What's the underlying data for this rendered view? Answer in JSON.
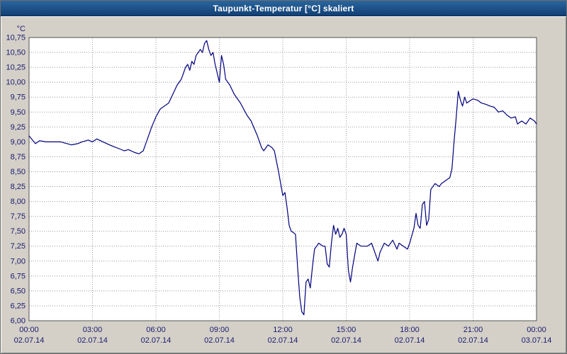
{
  "window": {
    "title": "Taupunkt-Temperatur [°C] skaliert"
  },
  "colors": {
    "title_bar_bg": "#17538f",
    "panel_bg": "#d4d0c8",
    "plot_bg": "#ffffff",
    "grid": "#999999",
    "plot_border": "#555555",
    "axis_text": "#1a1a6e",
    "line": "#00007f"
  },
  "chart_data": {
    "type": "line",
    "title": "Taupunkt-Temperatur [°C] skaliert",
    "xlabel": "",
    "ylabel": "°C",
    "ylim": [
      6.0,
      10.75
    ],
    "y_tick_step": 0.25,
    "y_tick_labels": [
      "10,75",
      "10,50",
      "10,25",
      "10,00",
      "9,75",
      "9,50",
      "9,25",
      "9,00",
      "8,75",
      "8,50",
      "8,25",
      "8,00",
      "7,75",
      "7,50",
      "7,25",
      "7,00",
      "6,75",
      "6,50",
      "6,25",
      "6,00"
    ],
    "xlim_hours": [
      0,
      24
    ],
    "x_ticks": [
      {
        "time": "00:00",
        "date": "02.07.14"
      },
      {
        "time": "03:00",
        "date": "02.07.14"
      },
      {
        "time": "06:00",
        "date": "02.07.14"
      },
      {
        "time": "09:00",
        "date": "02.07.14"
      },
      {
        "time": "12:00",
        "date": "02.07.14"
      },
      {
        "time": "15:00",
        "date": "02.07.14"
      },
      {
        "time": "18:00",
        "date": "02.07.14"
      },
      {
        "time": "21:00",
        "date": "02.07.14"
      },
      {
        "time": "00:00",
        "date": "03.07.14"
      }
    ],
    "grid": true,
    "legend": "none",
    "series_name": "Taupunkt-Temperatur",
    "x": [
      0,
      0.3,
      0.5,
      0.8,
      1,
      1.5,
      1.8,
      2,
      2.3,
      2.5,
      2.8,
      3,
      3.2,
      3.5,
      3.8,
      4,
      4.3,
      4.5,
      4.7,
      5,
      5.2,
      5.4,
      5.5,
      5.8,
      6,
      6.2,
      6.4,
      6.6,
      6.8,
      7,
      7.2,
      7.3,
      7.4,
      7.5,
      7.6,
      7.7,
      7.8,
      7.9,
      8,
      8.1,
      8.2,
      8.3,
      8.4,
      8.5,
      8.6,
      8.7,
      8.8,
      8.9,
      9,
      9.1,
      9.2,
      9.3,
      9.4,
      9.5,
      9.7,
      10,
      10.3,
      10.5,
      10.8,
      11,
      11.1,
      11.3,
      11.5,
      11.6,
      11.8,
      12,
      12.1,
      12.2,
      12.3,
      12.4,
      12.5,
      12.6,
      12.7,
      12.8,
      12.9,
      13,
      13.1,
      13.2,
      13.3,
      13.4,
      13.5,
      13.7,
      13.9,
      14,
      14.1,
      14.2,
      14.3,
      14.4,
      14.5,
      14.6,
      14.7,
      14.8,
      14.9,
      15,
      15.1,
      15.2,
      15.3,
      15.4,
      15.5,
      15.7,
      16,
      16.2,
      16.4,
      16.5,
      16.6,
      16.8,
      17,
      17.2,
      17.4,
      17.5,
      17.7,
      17.9,
      18,
      18.2,
      18.3,
      18.4,
      18.5,
      18.6,
      18.7,
      18.8,
      18.9,
      19,
      19.2,
      19.4,
      19.5,
      19.7,
      19.9,
      20,
      20.1,
      20.2,
      20.3,
      20.4,
      20.5,
      20.6,
      20.7,
      20.9,
      21,
      21.2,
      21.4,
      21.6,
      21.8,
      22,
      22.2,
      22.4,
      22.6,
      22.8,
      23,
      23.1,
      23.3,
      23.5,
      23.7,
      23.9,
      24
    ],
    "y": [
      9.1,
      8.97,
      9.02,
      9.0,
      9.0,
      9.0,
      8.97,
      8.95,
      8.97,
      9.0,
      9.03,
      9.0,
      9.05,
      9.0,
      8.95,
      8.92,
      8.88,
      8.85,
      8.87,
      8.82,
      8.8,
      8.85,
      8.95,
      9.25,
      9.42,
      9.55,
      9.6,
      9.65,
      9.8,
      9.95,
      10.05,
      10.15,
      10.25,
      10.3,
      10.2,
      10.35,
      10.3,
      10.45,
      10.5,
      10.55,
      10.5,
      10.65,
      10.7,
      10.55,
      10.45,
      10.5,
      10.3,
      10.15,
      10.0,
      10.45,
      10.3,
      10.05,
      10.0,
      9.95,
      9.8,
      9.65,
      9.45,
      9.35,
      9.1,
      8.9,
      8.85,
      8.95,
      8.9,
      8.85,
      8.5,
      8.1,
      8.15,
      7.9,
      7.6,
      7.5,
      7.48,
      7.45,
      6.9,
      6.4,
      6.15,
      6.1,
      6.65,
      6.7,
      6.55,
      6.9,
      7.2,
      7.3,
      7.25,
      7.25,
      6.95,
      6.9,
      7.3,
      7.6,
      7.45,
      7.55,
      7.4,
      7.45,
      7.55,
      7.45,
      6.85,
      6.65,
      6.9,
      7.1,
      7.3,
      7.25,
      7.25,
      7.3,
      7.1,
      7.0,
      7.15,
      7.3,
      7.25,
      7.35,
      7.2,
      7.3,
      7.25,
      7.2,
      7.3,
      7.55,
      7.8,
      7.6,
      7.55,
      7.95,
      8.0,
      7.6,
      7.7,
      8.2,
      8.3,
      8.25,
      8.3,
      8.35,
      8.4,
      8.55,
      9.0,
      9.4,
      9.85,
      9.7,
      9.6,
      9.75,
      9.65,
      9.7,
      9.72,
      9.7,
      9.65,
      9.63,
      9.6,
      9.58,
      9.5,
      9.52,
      9.45,
      9.4,
      9.42,
      9.3,
      9.35,
      9.3,
      9.4,
      9.35,
      9.3
    ]
  }
}
